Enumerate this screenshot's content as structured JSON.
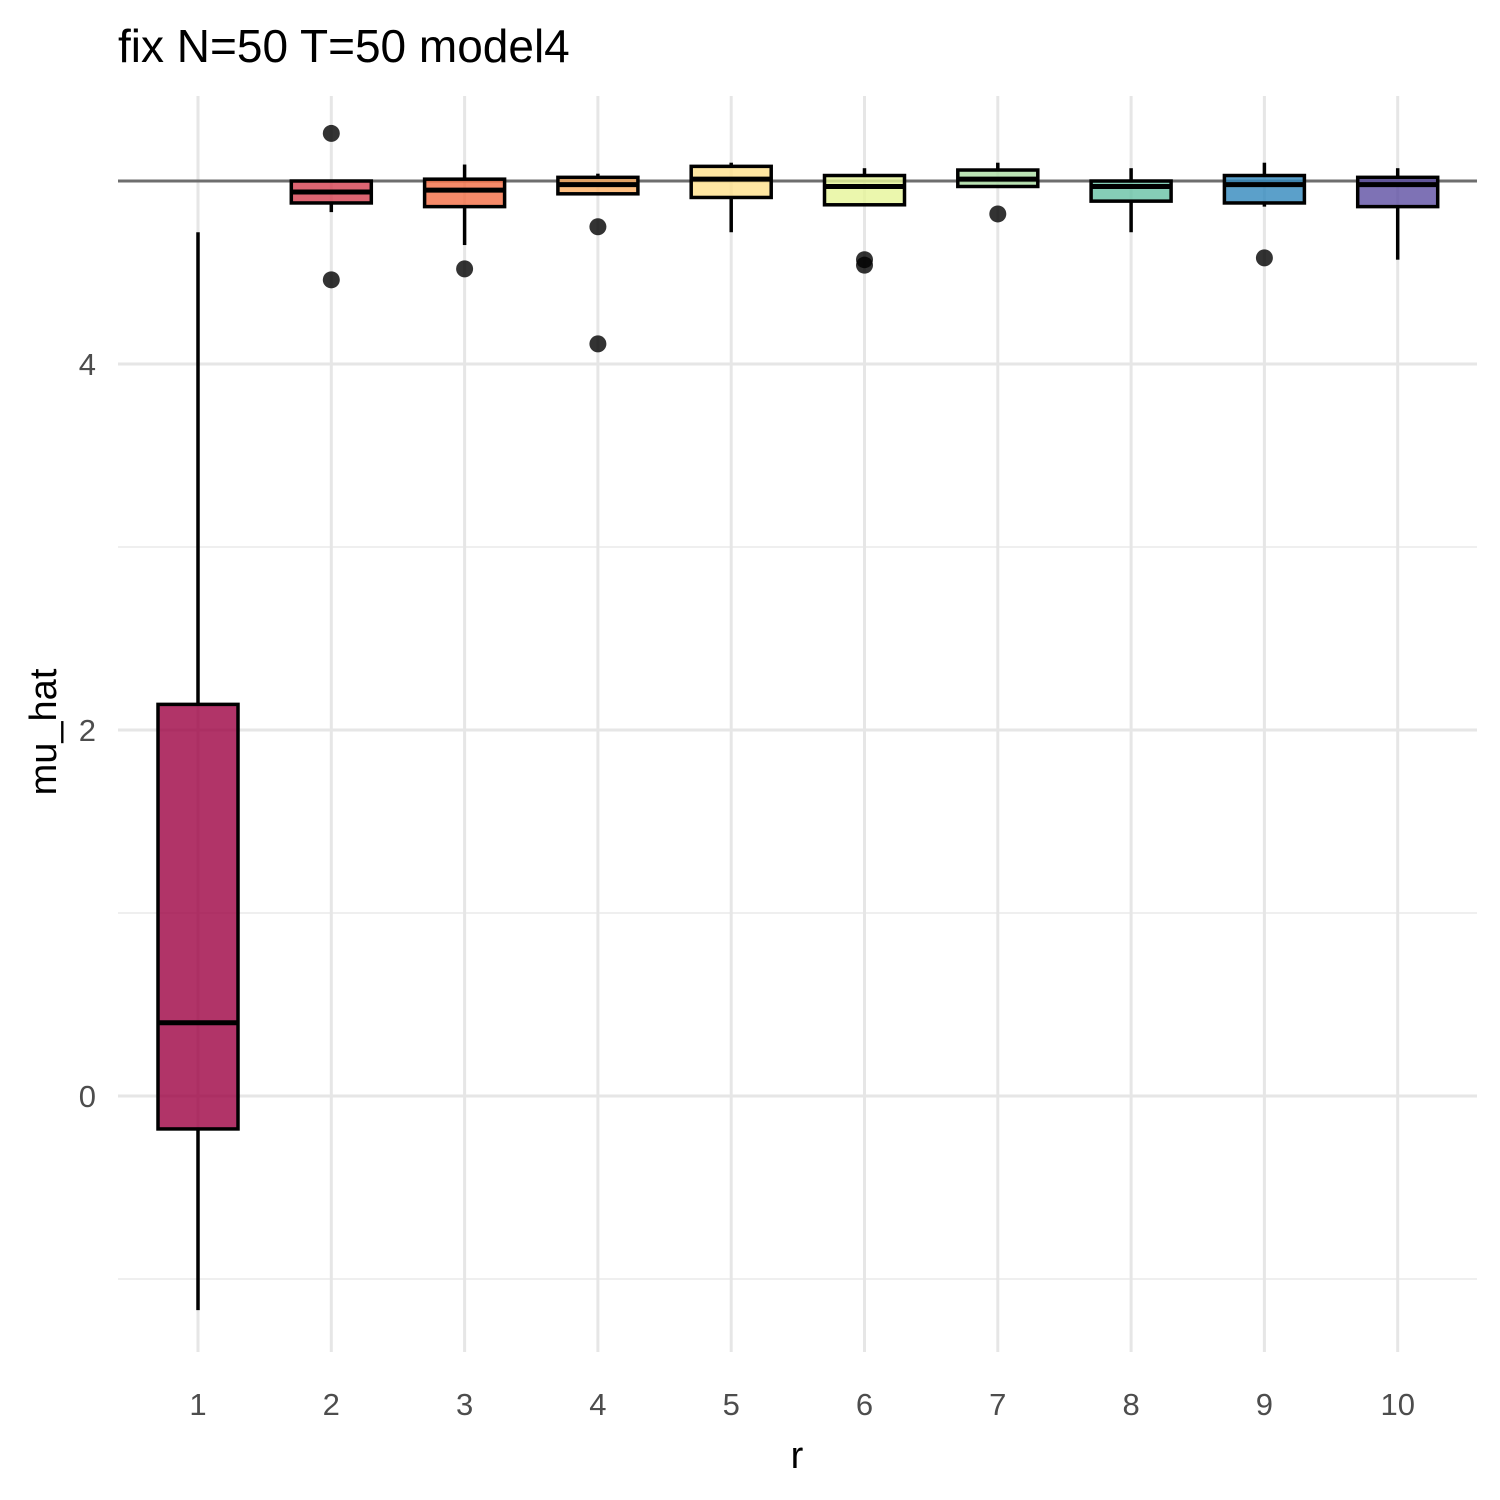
{
  "chart_data": {
    "type": "boxplot",
    "title": "fix N=50 T=50 model4",
    "xlabel": "r",
    "ylabel": "mu_hat",
    "categories": [
      "1",
      "2",
      "3",
      "4",
      "5",
      "6",
      "7",
      "8",
      "9",
      "10"
    ],
    "ylim": [
      -1.5,
      5.5
    ],
    "y_major_ticks": [
      0,
      2,
      4
    ],
    "y_minor_ticks": [
      -1,
      1,
      3
    ],
    "reference_line": 5,
    "grid": true,
    "legend": "none",
    "boxes": [
      {
        "category": "1",
        "min": -1.17,
        "q1": -0.18,
        "median": 0.4,
        "q3": 2.14,
        "max": 4.72,
        "outliers": [],
        "color": "#9e0142"
      },
      {
        "category": "2",
        "min": 4.83,
        "q1": 4.88,
        "median": 4.94,
        "q3": 5.0,
        "max": 5.0,
        "outliers": [
          5.26,
          4.46
        ],
        "color": "#d53e4f"
      },
      {
        "category": "3",
        "min": 4.65,
        "q1": 4.86,
        "median": 4.95,
        "q3": 5.01,
        "max": 5.09,
        "outliers": [
          4.52
        ],
        "color": "#f46d43"
      },
      {
        "category": "4",
        "min": 4.93,
        "q1": 4.93,
        "median": 4.98,
        "q3": 5.02,
        "max": 5.04,
        "outliers": [
          4.75,
          4.11
        ],
        "color": "#fdae61"
      },
      {
        "category": "5",
        "min": 4.72,
        "q1": 4.91,
        "median": 5.01,
        "q3": 5.08,
        "max": 5.1,
        "outliers": [],
        "color": "#fee08b"
      },
      {
        "category": "6",
        "min": 4.87,
        "q1": 4.87,
        "median": 4.97,
        "q3": 5.03,
        "max": 5.07,
        "outliers": [
          4.57,
          4.54
        ],
        "color": "#e6f598"
      },
      {
        "category": "7",
        "min": 4.97,
        "q1": 4.97,
        "median": 5.01,
        "q3": 5.06,
        "max": 5.1,
        "outliers": [
          4.82
        ],
        "color": "#abdda4"
      },
      {
        "category": "8",
        "min": 4.72,
        "q1": 4.89,
        "median": 4.97,
        "q3": 5.0,
        "max": 5.07,
        "outliers": [],
        "color": "#66c2a5"
      },
      {
        "category": "9",
        "min": 4.86,
        "q1": 4.88,
        "median": 4.98,
        "q3": 5.03,
        "max": 5.1,
        "outliers": [
          4.58
        ],
        "color": "#3288bd"
      },
      {
        "category": "10",
        "min": 4.57,
        "q1": 4.86,
        "median": 4.98,
        "q3": 5.02,
        "max": 5.07,
        "outliers": [],
        "color": "#5e4fa2"
      }
    ]
  }
}
